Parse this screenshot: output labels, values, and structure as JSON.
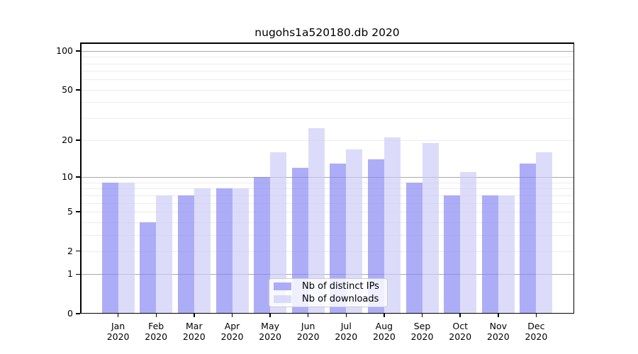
{
  "title": "nugohs1a520180.db 2020",
  "chart_data": {
    "type": "bar",
    "title": "nugohs1a520180.db 2020",
    "categories": [
      "Jan 2020",
      "Feb 2020",
      "Mar 2020",
      "Apr 2020",
      "May 2020",
      "Jun 2020",
      "Jul 2020",
      "Aug 2020",
      "Sep 2020",
      "Oct 2020",
      "Nov 2020",
      "Dec 2020"
    ],
    "months": [
      "Jan",
      "Feb",
      "Mar",
      "Apr",
      "May",
      "Jun",
      "Jul",
      "Aug",
      "Sep",
      "Oct",
      "Nov",
      "Dec"
    ],
    "year": "2020",
    "series": [
      {
        "name": "Nb of distinct IPs",
        "color": "#8484f3",
        "opacity": 0.67,
        "values": [
          9,
          4,
          7,
          8,
          10,
          12,
          13,
          14,
          9,
          7,
          7,
          13
        ]
      },
      {
        "name": "Nb of downloads",
        "color": "#cbcbf8",
        "opacity": 0.67,
        "values": [
          9,
          7,
          8,
          8,
          16,
          25,
          17,
          21,
          19,
          11,
          7,
          16
        ]
      }
    ],
    "xlabel": "",
    "ylabel": "",
    "yscale": "log1p",
    "ylim": [
      0,
      116
    ],
    "y_ticks": [
      0,
      1,
      2,
      5,
      10,
      20,
      50,
      100
    ],
    "y_major_gridlines": [
      1,
      10,
      100
    ],
    "y_minor_gridlines": [
      2,
      3,
      4,
      5,
      6,
      7,
      8,
      9,
      20,
      30,
      40,
      50,
      60,
      70,
      80,
      90
    ],
    "grid": "on",
    "legend_position": "lower center"
  }
}
